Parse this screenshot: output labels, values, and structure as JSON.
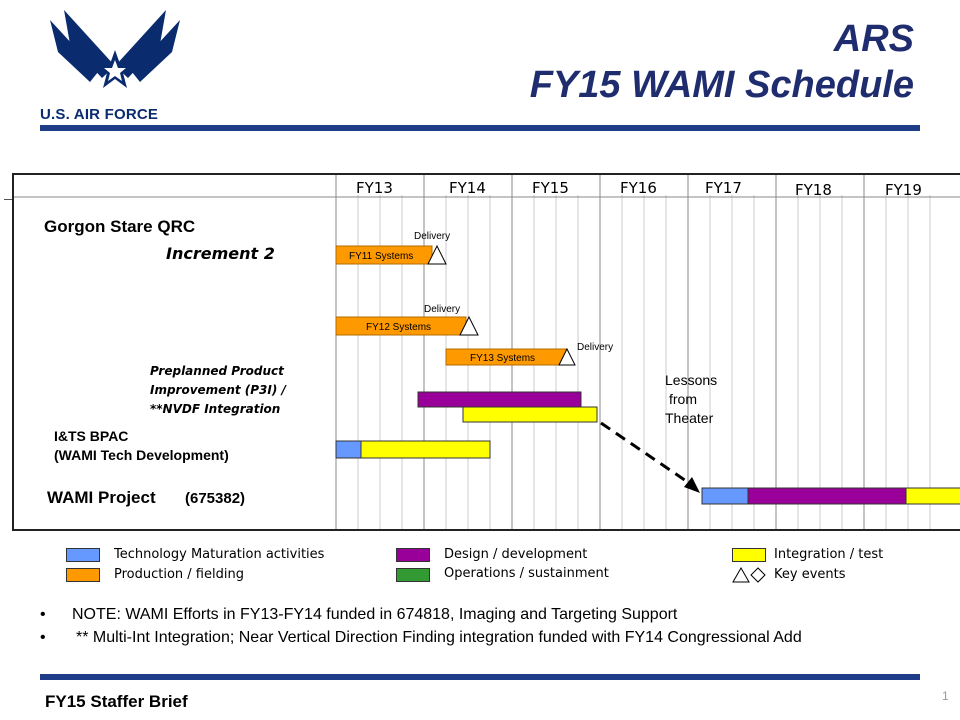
{
  "header": {
    "logo_text": "U.S. AIR FORCE",
    "title_line1": "ARS",
    "title_line2": "FY15 WAMI Schedule"
  },
  "schedule": {
    "fiscal_years": [
      "FY13",
      "FY14",
      "FY15",
      "FY16",
      "FY17",
      "FY18",
      "FY19"
    ],
    "programs": {
      "gorgon": "Gorgon Stare QRC",
      "increment": "Increment 2",
      "p3i_line1": "Preplanned  Product",
      "p3i_line2": "Improvement (P3I) /",
      "p3i_line3": "**NVDF Integration",
      "its_line1": "I&TS BPAC",
      "its_line2": "(WAMI Tech Development)",
      "wami": "WAMI Project",
      "wami_pe": "(675382)"
    },
    "bars": {
      "fy11": "FY11 Systems",
      "fy12": "FY12 Systems",
      "fy13": "FY13 Systems"
    },
    "delivery_label": "Delivery",
    "lessons_line1": "Lessons",
    "lessons_line2": "from",
    "lessons_line3": "Theater"
  },
  "legend": {
    "tech": "Technology Maturation activities",
    "production": "Production  /  fielding",
    "design": "Design / development",
    "operations": "Operations / sustainment",
    "integration": "Integration / test",
    "key_events": "Key events"
  },
  "colors": {
    "blue": "#6699ff",
    "orange": "#ff9900",
    "purple": "#990099",
    "green": "#339933",
    "yellow": "#ffff00",
    "navy": "#1f3c88"
  },
  "notes": {
    "note1": "NOTE: WAMI Efforts in FY13-FY14 funded in 674818, Imaging and Targeting Support",
    "note2": "** Multi-Int Integration; Near Vertical Direction Finding integration funded with FY14 Congressional Add"
  },
  "footer": {
    "brief": "FY15 Staffer Brief",
    "page": "1"
  }
}
